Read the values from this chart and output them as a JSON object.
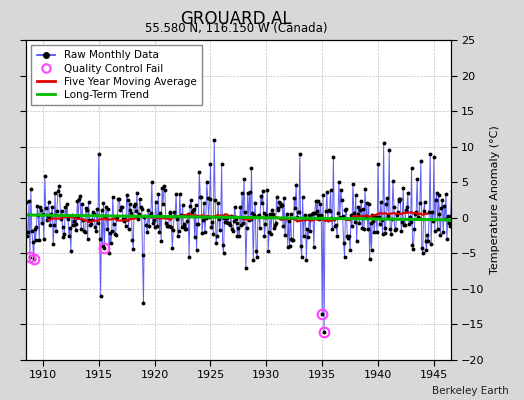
{
  "title": "GROUARD,AL",
  "subtitle": "55.580 N, 116.150 W (Canada)",
  "ylabel_right": "Temperature Anomaly (°C)",
  "watermark": "Berkeley Earth",
  "xlim": [
    1908.5,
    1946.5
  ],
  "ylim": [
    -20,
    25
  ],
  "yticks": [
    -20,
    -15,
    -10,
    -5,
    0,
    5,
    10,
    15,
    20,
    25
  ],
  "xticks": [
    1910,
    1915,
    1920,
    1925,
    1930,
    1935,
    1940,
    1945
  ],
  "bg_color": "#d8d8d8",
  "plot_bg_color": "#ffffff",
  "grid_color": "#c0c0c0",
  "raw_line_color": "#4444ee",
  "raw_marker_color": "#000000",
  "ma_color": "#dd0000",
  "trend_color": "#00bb00",
  "qc_color": "#ff44ff",
  "legend_items": [
    "Raw Monthly Data",
    "Quality Control Fail",
    "Five Year Moving Average",
    "Long-Term Trend"
  ]
}
